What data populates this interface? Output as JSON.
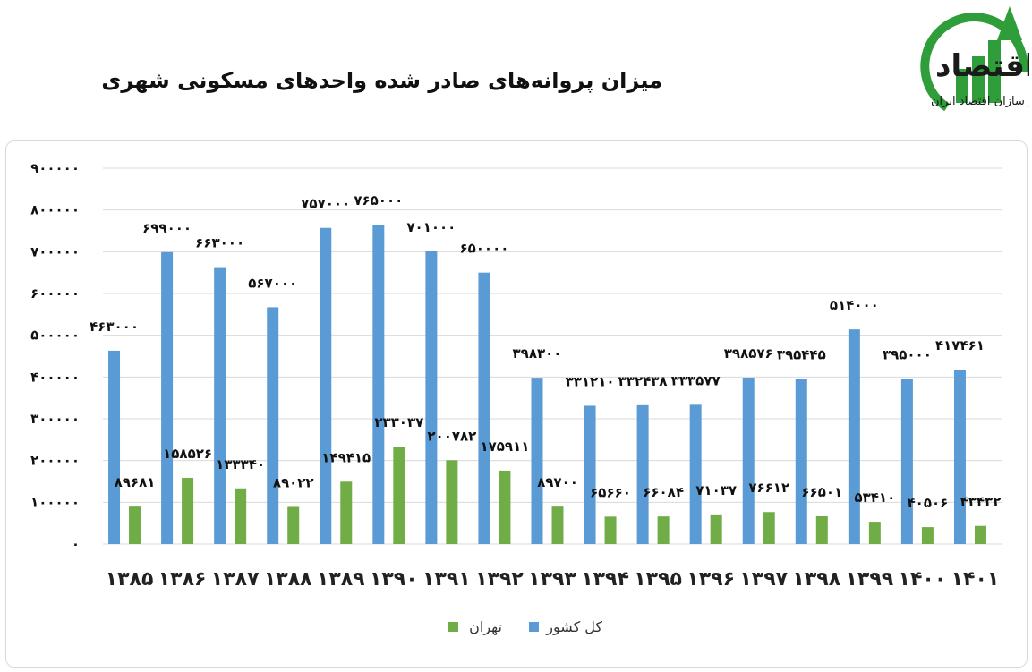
{
  "header": {
    "title": "میزان پروانه‌های صادر شده واحدهای مسکونی شهری",
    "logo_name": "مسیراقتصاد",
    "logo_tagline": "رسانه تصمیم سازان اقتصاد ایران"
  },
  "colors": {
    "country": "#5b9bd5",
    "tehran": "#70ad47",
    "logo_green": "#2e9d3a",
    "logo_text": "#1a1a1a"
  },
  "chart_data": {
    "type": "bar",
    "title": "میزان پروانه‌های صادر شده واحدهای مسکونی شهری",
    "xlabel": "",
    "ylabel": "",
    "ylim": [
      0,
      900000
    ],
    "yticks": [
      0,
      100000,
      200000,
      300000,
      400000,
      500000,
      600000,
      700000,
      800000,
      900000
    ],
    "ytick_labels": [
      "۰",
      "۱۰۰۰۰۰",
      "۲۰۰۰۰۰",
      "۳۰۰۰۰۰",
      "۴۰۰۰۰۰",
      "۵۰۰۰۰۰",
      "۶۰۰۰۰۰",
      "۷۰۰۰۰۰",
      "۸۰۰۰۰۰",
      "۹۰۰۰۰۰"
    ],
    "categories": [
      "۱۳۸۵",
      "۱۳۸۶",
      "۱۳۸۷",
      "۱۳۸۸",
      "۱۳۸۹",
      "۱۳۹۰",
      "۱۳۹۱",
      "۱۳۹۲",
      "۱۳۹۳",
      "۱۳۹۴",
      "۱۳۹۵",
      "۱۳۹۶",
      "۱۳۹۷",
      "۱۳۹۸",
      "۱۳۹۹",
      "۱۴۰۰",
      "۱۴۰۱"
    ],
    "series": [
      {
        "name": "کل کشور",
        "values": [
          463000,
          699000,
          663000,
          567000,
          757000,
          765000,
          701000,
          650000,
          398300,
          331210,
          332438,
          333577,
          398576,
          395445,
          514000,
          395000,
          417461
        ],
        "labels": [
          "۴۶۳۰۰۰",
          "۶۹۹۰۰۰",
          "۶۶۳۰۰۰",
          "۵۶۷۰۰۰",
          "۷۵۷۰۰۰",
          "۷۶۵۰۰۰",
          "۷۰۱۰۰۰",
          "۶۵۰۰۰۰",
          "۳۹۸۳۰۰",
          "۳۳۱۲۱۰",
          "۳۳۲۴۳۸",
          "۳۳۳۵۷۷",
          "۳۹۸۵۷۶",
          "۳۹۵۴۴۵",
          "۵۱۴۰۰۰",
          "۳۹۵۰۰۰",
          "۴۱۷۴۶۱"
        ]
      },
      {
        "name": "تهران",
        "values": [
          89681,
          158526,
          133340,
          89022,
          149415,
          233037,
          200782,
          175911,
          89700,
          65660,
          66084,
          71037,
          76612,
          66501,
          53410,
          40506,
          43432
        ],
        "labels": [
          "۸۹۶۸۱",
          "۱۵۸۵۲۶",
          "۱۳۳۳۴۰",
          "۸۹۰۲۲",
          "۱۴۹۴۱۵",
          "۲۳۳۰۳۷",
          "۲۰۰۷۸۲",
          "۱۷۵۹۱۱",
          "۸۹۷۰۰",
          "۶۵۶۶۰",
          "۶۶۰۸۴",
          "۷۱۰۳۷",
          "۷۶۶۱۲",
          "۶۶۵۰۱",
          "۵۳۴۱۰",
          "۴۰۵۰۶",
          "۴۳۴۳۲"
        ]
      }
    ],
    "legend": {
      "placement": "bottom-center",
      "order": [
        "تهران",
        "کل کشور"
      ]
    },
    "grid": true
  }
}
